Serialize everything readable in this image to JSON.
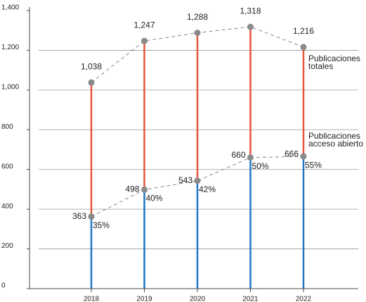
{
  "chart_data": {
    "type": "lollipop",
    "categories": [
      "2018",
      "2019",
      "2020",
      "2021",
      "2022"
    ],
    "series": [
      {
        "name": "Publicaciones totales",
        "color": "#e8553a",
        "values": [
          1038,
          1247,
          1288,
          1318,
          1216
        ],
        "value_labels": [
          "1,038",
          "1,247",
          "1,288",
          "1,318",
          "1,216"
        ]
      },
      {
        "name": "Publicaciones acceso abierto",
        "color": "#1f77c4",
        "values": [
          363,
          498,
          543,
          660,
          666
        ],
        "percentages": [
          "35%",
          "40%",
          "42%",
          "50%",
          "55%"
        ]
      }
    ],
    "ylim": [
      0,
      1400
    ],
    "yticks": [
      0,
      200,
      400,
      600,
      800,
      {
        "value": 1000,
        "label": "1,000"
      },
      {
        "value": 1200,
        "label": "1,200"
      },
      {
        "value": 1400,
        "label": "1,400"
      }
    ],
    "grid": true
  }
}
